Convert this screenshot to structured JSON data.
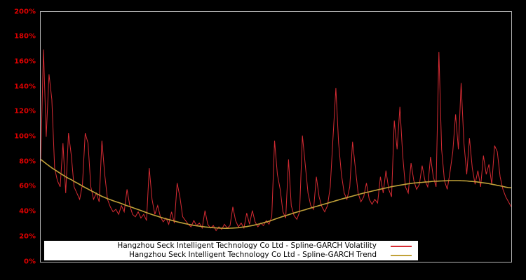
{
  "colors": {
    "background": "#000000",
    "axis_label": "#dd0000",
    "plot_border": "#b3b3b3",
    "legend_background": "#ffffff",
    "legend_text": "#000000"
  },
  "chart_data": {
    "type": "line",
    "title": "",
    "xlabel": "",
    "ylabel": "",
    "x_axis": {
      "tick_labels": []
    },
    "y_axis": {
      "min": 0,
      "max": 200,
      "unit": "%",
      "ticks": [
        {
          "label": "0%",
          "value": 0
        },
        {
          "label": "20%",
          "value": 20
        },
        {
          "label": "40%",
          "value": 40
        },
        {
          "label": "60%",
          "value": 60
        },
        {
          "label": "80%",
          "value": 80
        },
        {
          "label": "100%",
          "value": 100
        },
        {
          "label": "120%",
          "value": 120
        },
        {
          "label": "140%",
          "value": 140
        },
        {
          "label": "160%",
          "value": 160
        },
        {
          "label": "180%",
          "value": 180
        },
        {
          "label": "200%",
          "value": 200
        }
      ]
    },
    "legend": {
      "position": "bottom-inside",
      "background": "#ffffff",
      "text_color": "#000000"
    },
    "series": [
      {
        "name": "Hangzhou Seck Intelligent Technology Co Ltd - Spline-GARCH Volatility",
        "color": "#d62b33",
        "width": 1,
        "values": [
          80,
          170,
          100,
          150,
          130,
          75,
          65,
          60,
          95,
          55,
          103,
          85,
          60,
          55,
          50,
          62,
          103,
          95,
          60,
          50,
          55,
          48,
          97,
          70,
          50,
          44,
          40,
          42,
          38,
          45,
          40,
          58,
          45,
          38,
          36,
          40,
          35,
          38,
          33,
          75,
          50,
          38,
          45,
          36,
          32,
          35,
          30,
          40,
          31,
          63,
          52,
          36,
          33,
          30,
          28,
          33,
          29,
          31,
          27,
          41,
          30,
          27,
          29,
          25,
          28,
          26,
          30,
          27,
          29,
          44,
          33,
          28,
          31,
          27,
          39,
          30,
          41,
          32,
          28,
          31,
          29,
          33,
          30,
          36,
          97,
          70,
          58,
          40,
          35,
          82,
          45,
          37,
          34,
          40,
          101,
          78,
          55,
          45,
          42,
          68,
          52,
          44,
          40,
          45,
          60,
          100,
          139,
          95,
          70,
          55,
          50,
          60,
          96,
          75,
          55,
          48,
          52,
          63,
          50,
          46,
          50,
          47,
          68,
          55,
          73,
          58,
          52,
          113,
          90,
          124,
          85,
          60,
          55,
          79,
          65,
          58,
          62,
          77,
          65,
          60,
          84,
          68,
          60,
          168,
          90,
          65,
          58,
          72,
          88,
          118,
          90,
          143,
          95,
          70,
          99,
          75,
          62,
          73,
          60,
          85,
          70,
          78,
          62,
          93,
          88,
          68,
          58,
          52,
          48,
          44
        ]
      },
      {
        "name": "Hangzhou Seck Intelligent Technology Co Ltd - Spline-GARCH Trend",
        "color": "#c1a239",
        "width": 1.6,
        "values": [
          82,
          80.2,
          78.5,
          76.8,
          75.2,
          73.7,
          72.3,
          70.8,
          69.4,
          68,
          66.8,
          65.7,
          64.3,
          63.2,
          61.9,
          60.6,
          59.4,
          58.2,
          57,
          55.9,
          54.7,
          53.5,
          52.4,
          51.5,
          50.5,
          49.7,
          48.9,
          48.1,
          47.4,
          46.6,
          45.7,
          44.9,
          44.2,
          43.4,
          42.6,
          41.8,
          41,
          40.2,
          39.4,
          38.6,
          37.8,
          37.1,
          36.4,
          35.7,
          35,
          34.4,
          33.8,
          33.2,
          32.6,
          32,
          31.5,
          31,
          30.5,
          30,
          29.6,
          29.2,
          28.8,
          28.5,
          28.2,
          27.9,
          27.7,
          27.5,
          27.3,
          27.1,
          27,
          26.9,
          26.8,
          26.8,
          26.9,
          27,
          27.1,
          27.3,
          27.6,
          27.9,
          28.2,
          28.6,
          29,
          29.5,
          30,
          30.6,
          31.2,
          31.8,
          32.5,
          33.2,
          34,
          34.8,
          35.6,
          36.3,
          37,
          37.7,
          38.4,
          39.1,
          39.8,
          40.4,
          41.1,
          41.7,
          42.4,
          43,
          43.7,
          44.3,
          45,
          45.6,
          46.3,
          46.9,
          47.6,
          48.2,
          48.9,
          49.5,
          50.2,
          50.8,
          51.4,
          52,
          52.6,
          53.2,
          53.8,
          54.4,
          55,
          55.5,
          56,
          56.6,
          57.1,
          57.6,
          58.1,
          58.6,
          59.1,
          59.6,
          60.1,
          60.5,
          60.9,
          61.3,
          61.7,
          62.1,
          62.4,
          62.7,
          63,
          63.2,
          63.4,
          63.6,
          63.8,
          64,
          64.2,
          64.4,
          64.5,
          64.6,
          64.7,
          64.8,
          64.9,
          65,
          65,
          65,
          65,
          64.9,
          64.8,
          64.7,
          64.5,
          64.3,
          64.1,
          63.8,
          63.5,
          63.2,
          62.9,
          62.5,
          62.1,
          61.7,
          61.2,
          60.8,
          60.3,
          59.8,
          59.4,
          59.2
        ]
      }
    ]
  }
}
